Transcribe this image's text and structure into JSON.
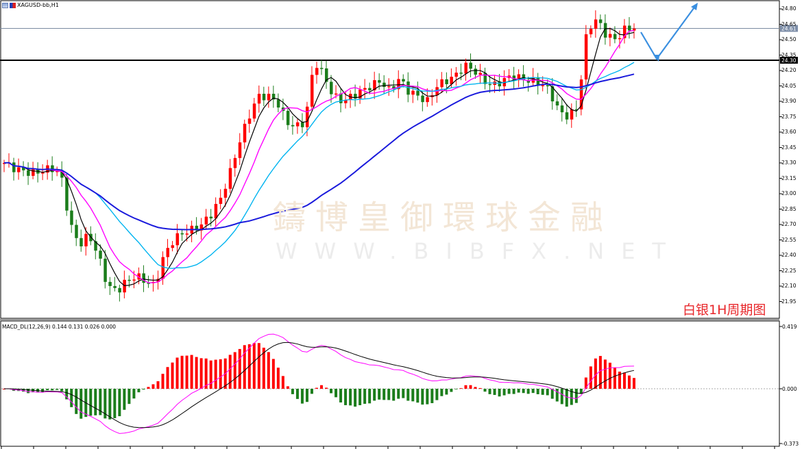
{
  "window": {
    "title": "XAGUSD-bb,H1"
  },
  "annotation": "白银1H周期图",
  "watermark": {
    "cn": "鑄博皇御環球金融",
    "en": "WWW.BIBFX.NET"
  },
  "price_axis": {
    "ticks": [
      "24.80",
      "24.65",
      "24.50",
      "24.35",
      "24.20",
      "24.05",
      "23.90",
      "23.75",
      "23.60",
      "23.45",
      "23.30",
      "23.15",
      "23.00",
      "22.85",
      "22.70",
      "22.55",
      "22.40",
      "22.25",
      "22.10",
      "21.95"
    ],
    "current_price_label": "24.61",
    "horizontal_line_label": "24.30"
  },
  "macd": {
    "label": "MACD_DL(12,26,9) 0.144 0.131 0.026 0.000",
    "max_label": "0.419",
    "zero_label": "0.000",
    "min_label": "-0.373"
  },
  "colors": {
    "bull": "#ff0000",
    "bear": "#1b7d1b",
    "ma_fast": "#000000",
    "ma_mid": "#ff00ff",
    "ma_slow": "#00b4f0",
    "ma_long": "#1a1adc",
    "arrow": "#3a8fe0",
    "hline": "#000000",
    "price_line": "#7a8aa0"
  },
  "chart_data": {
    "type": "candlestick",
    "title": "XAGUSD-bb,H1",
    "ylim": [
      21.88,
      24.88
    ],
    "annotations": [
      "白银1H周期图",
      "horizontal support at 24.30",
      "projected path: dip to ~24.33 then rally above 24.80"
    ],
    "close_path": [
      23.3,
      23.25,
      23.22,
      23.2,
      23.22,
      23.25,
      23.2,
      22.7,
      22.5,
      22.6,
      22.4,
      22.1,
      22.05,
      22.15,
      22.2,
      22.15,
      22.1,
      22.4,
      22.55,
      22.62,
      22.65,
      22.7,
      22.8,
      22.95,
      23.2,
      23.5,
      23.75,
      23.95,
      23.95,
      23.9,
      23.7,
      23.65,
      23.7,
      24.3,
      24.15,
      23.95,
      23.9,
      23.95,
      24.0,
      24.05,
      24.1,
      24.0,
      24.12,
      24.0,
      23.95,
      23.9,
      24.05,
      24.1,
      24.15,
      24.25,
      24.2,
      24.1,
      24.05,
      24.1,
      24.15,
      24.12,
      24.1,
      24.08,
      24.0,
      23.8,
      23.75,
      23.85,
      24.6,
      24.7,
      24.55,
      24.5,
      24.6,
      24.62
    ],
    "macd_hist_shape": "negative early, strong positive mid, mixed flat, strong positive spike at end",
    "macd_range": [
      -0.373,
      0.419
    ]
  }
}
